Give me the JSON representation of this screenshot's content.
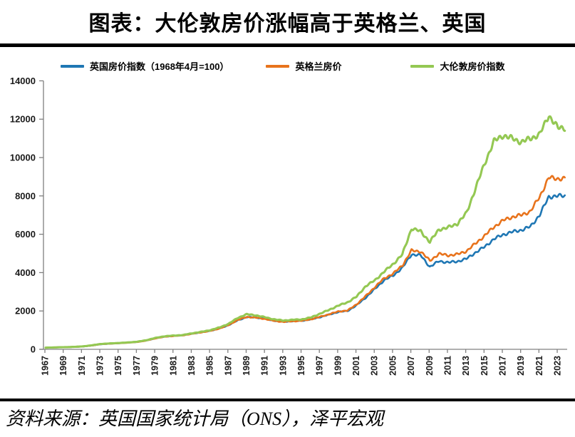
{
  "page": {
    "title": "图表：大伦敦房价涨幅高于英格兰、英国",
    "source": "资料来源：英国国家统计局（ONS），泽平宏观"
  },
  "chart_data": {
    "type": "line",
    "title": "大伦敦房价涨幅高于英格兰、英国",
    "grid": false,
    "legend_position": "top",
    "axis_color": "#808080",
    "label_color": "#1a1a1a",
    "ylim": [
      0,
      14000
    ],
    "y_ticks": [
      0,
      2000,
      4000,
      6000,
      8000,
      10000,
      12000,
      14000
    ],
    "x_ticks": [
      1967,
      1969,
      1971,
      1973,
      1975,
      1977,
      1979,
      1981,
      1983,
      1985,
      1987,
      1989,
      1991,
      1993,
      1995,
      1997,
      1999,
      2001,
      2003,
      2005,
      2007,
      2009,
      2011,
      2013,
      2015,
      2017,
      2019,
      2021,
      2023
    ],
    "x_label_rotation": -90,
    "x": [
      1967,
      1968,
      1969,
      1970,
      1971,
      1972,
      1973,
      1974,
      1975,
      1976,
      1977,
      1978,
      1979,
      1980,
      1981,
      1982,
      1983,
      1984,
      1985,
      1986,
      1987,
      1988,
      1989,
      1990,
      1991,
      1992,
      1993,
      1994,
      1995,
      1996,
      1997,
      1998,
      1999,
      2000,
      2001,
      2002,
      2003,
      2004,
      2005,
      2006,
      2007,
      2008,
      2009,
      2010,
      2011,
      2012,
      2013,
      2014,
      2015,
      2016,
      2017,
      2018,
      2019,
      2020,
      2021,
      2022,
      2023
    ],
    "series": [
      {
        "name": "英国房价指数（1968年4月=100）",
        "color": "#1f77b4",
        "line_width": 2.6,
        "values": [
          85,
          100,
          110,
          124,
          145,
          195,
          265,
          295,
          320,
          350,
          385,
          460,
          575,
          660,
          700,
          735,
          815,
          885,
          965,
          1090,
          1260,
          1510,
          1680,
          1660,
          1590,
          1490,
          1440,
          1470,
          1490,
          1560,
          1680,
          1810,
          1950,
          2000,
          2300,
          2700,
          3150,
          3600,
          3850,
          4250,
          4950,
          4900,
          4300,
          4600,
          4530,
          4580,
          4720,
          5050,
          5350,
          5750,
          5980,
          6120,
          6220,
          6400,
          7000,
          7950,
          8000
        ]
      },
      {
        "name": "英格兰房价",
        "color": "#e8731c",
        "line_width": 2.6,
        "values": [
          85,
          100,
          110,
          124,
          145,
          195,
          265,
          295,
          318,
          348,
          380,
          455,
          570,
          655,
          695,
          725,
          810,
          880,
          960,
          1085,
          1265,
          1530,
          1690,
          1650,
          1580,
          1480,
          1430,
          1465,
          1490,
          1565,
          1695,
          1830,
          1975,
          2020,
          2350,
          2780,
          3250,
          3700,
          3950,
          4380,
          5150,
          5100,
          4620,
          4980,
          4900,
          4950,
          5120,
          5520,
          5930,
          6380,
          6720,
          6900,
          7000,
          7200,
          7950,
          8950,
          8900
        ]
      },
      {
        "name": "大伦敦房价指数",
        "color": "#94c853",
        "line_width": 3.1,
        "values": [
          85,
          100,
          112,
          126,
          150,
          205,
          280,
          305,
          330,
          358,
          395,
          475,
          595,
          680,
          715,
          745,
          835,
          910,
          1000,
          1140,
          1330,
          1640,
          1830,
          1770,
          1670,
          1560,
          1500,
          1540,
          1560,
          1660,
          1860,
          2060,
          2280,
          2450,
          2750,
          3300,
          3600,
          4050,
          4450,
          4950,
          6300,
          6150,
          5600,
          6250,
          6350,
          6550,
          7100,
          8400,
          9700,
          10850,
          11150,
          11000,
          10800,
          11000,
          11200,
          12200,
          11550
        ]
      }
    ]
  }
}
